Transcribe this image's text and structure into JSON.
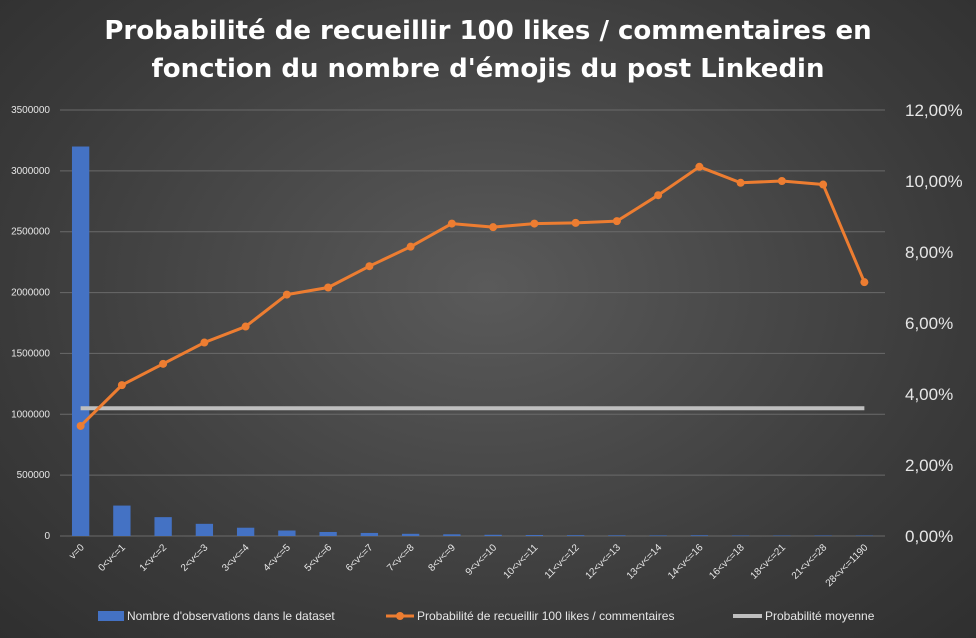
{
  "chart_data": {
    "type": "bar+line",
    "title_lines": [
      "Probabilité de recueillir 100 likes / commentaires en",
      "fonction du nombre d'émojis du post Linkedin"
    ],
    "categories": [
      "v=0",
      "0<v<=1",
      "1<v<=2",
      "2<v<=3",
      "3<v<=4",
      "4<v<=5",
      "5<v<=6",
      "6<v<=7",
      "7<v<=8",
      "8<v<=9",
      "9<v<=10",
      "10<v<=11",
      "11<v<=12",
      "12<v<=13",
      "13<v<=14",
      "14<v<=16",
      "16<v<=18",
      "18<v<=21",
      "21<v<=28",
      "28<v<=1190"
    ],
    "left_axis": {
      "min": 0,
      "max": 3500000,
      "ticks": [
        0,
        500000,
        1000000,
        1500000,
        2000000,
        2500000,
        3000000,
        3500000
      ],
      "tick_labels": [
        "0",
        "500000",
        "1000000",
        "1500000",
        "2000000",
        "2500000",
        "3000000",
        "3500000"
      ]
    },
    "right_axis": {
      "min": 0,
      "max": 12,
      "ticks": [
        0,
        2,
        4,
        6,
        8,
        10,
        12
      ],
      "tick_labels": [
        "0,00%",
        "2,00%",
        "4,00%",
        "6,00%",
        "8,00%",
        "10,00%",
        "12,00%"
      ]
    },
    "series": [
      {
        "name": "Nombre d'observations dans le dataset",
        "kind": "bar",
        "axis": "left",
        "color": "#4472c4",
        "values": [
          3200000,
          250000,
          155000,
          100000,
          68000,
          45000,
          33000,
          25000,
          18000,
          14000,
          10000,
          8000,
          6500,
          5500,
          4500,
          6000,
          4000,
          3500,
          4000,
          3500
        ]
      },
      {
        "name": "Probabilité de recueillir 100 likes / commentaires",
        "kind": "line",
        "axis": "right",
        "color": "#ed7d31",
        "values": [
          3.1,
          4.25,
          4.85,
          5.45,
          5.9,
          6.8,
          7.0,
          7.6,
          8.15,
          8.8,
          8.7,
          8.8,
          8.82,
          8.87,
          9.6,
          10.4,
          9.95,
          10.0,
          9.9,
          7.15
        ]
      },
      {
        "name": "Probabilité moyenne",
        "kind": "line",
        "axis": "right",
        "color": "#bfbfbf",
        "values": [
          3.6,
          3.6,
          3.6,
          3.6,
          3.6,
          3.6,
          3.6,
          3.6,
          3.6,
          3.6,
          3.6,
          3.6,
          3.6,
          3.6,
          3.6,
          3.6,
          3.6,
          3.6,
          3.6,
          3.6
        ]
      }
    ],
    "legend_position": "bottom"
  }
}
